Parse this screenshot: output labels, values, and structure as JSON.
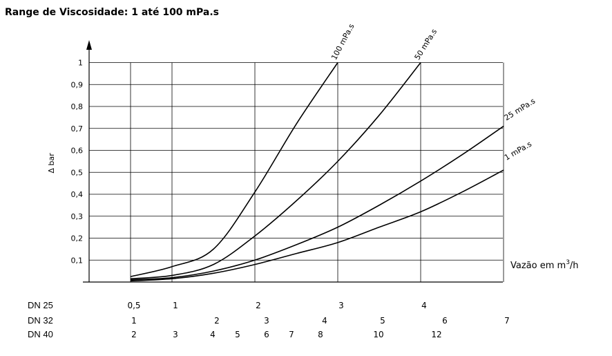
{
  "chart_data": {
    "type": "line",
    "title": "Range de Viscosidade: 1 até 100 mPa.s",
    "ylabel": "Δ bar",
    "xlabel_main": "Vazão em m",
    "xlabel_sup": "3",
    "xlabel_tail": "/h",
    "xlim": [
      0,
      7
    ],
    "ylim": [
      0,
      1
    ],
    "yticks": [
      "0,1",
      "0,2",
      "0,3",
      "0,4",
      "0,5",
      "0,6",
      "0,7",
      "0,8",
      "0,9",
      "1"
    ],
    "yticks_values": [
      0.1,
      0.2,
      0.3,
      0.4,
      0.5,
      0.6,
      0.7,
      0.8,
      0.9,
      1
    ],
    "grid": true,
    "dn_scales": [
      {
        "name": "DN 25",
        "ticks": [
          {
            "label": "0,5",
            "x": 0.5
          },
          {
            "label": "1",
            "x": 1
          },
          {
            "label": "2",
            "x": 2
          },
          {
            "label": "3",
            "x": 3
          },
          {
            "label": "4",
            "x": 4
          }
        ]
      },
      {
        "name": "DN 32",
        "ticks": [
          {
            "label": "1",
            "x": 0.5
          },
          {
            "label": "2",
            "x": 1.5
          },
          {
            "label": "3",
            "x": 2.1
          },
          {
            "label": "4",
            "x": 2.8
          },
          {
            "label": "5",
            "x": 3.5
          },
          {
            "label": "6",
            "x": 4.25
          },
          {
            "label": "7",
            "x": 5
          }
        ]
      },
      {
        "name": "DN 40",
        "ticks": [
          {
            "label": "2",
            "x": 0.5
          },
          {
            "label": "3",
            "x": 1
          },
          {
            "label": "4",
            "x": 1.45
          },
          {
            "label": "5",
            "x": 1.75
          },
          {
            "label": "6",
            "x": 2.1
          },
          {
            "label": "7",
            "x": 2.4
          },
          {
            "label": "8",
            "x": 2.75
          },
          {
            "label": "10",
            "x": 3.45
          },
          {
            "label": "12",
            "x": 4.15
          }
        ]
      }
    ],
    "series": [
      {
        "name": "100 mPa.s",
        "x": [
          0.5,
          1,
          1.5,
          2,
          2.5,
          3
        ],
        "y": [
          0.025,
          0.07,
          0.15,
          0.41,
          0.72,
          1.0
        ]
      },
      {
        "name": "50 mPa.s",
        "x": [
          0.5,
          1,
          1.5,
          2,
          2.5,
          3,
          3.5,
          4
        ],
        "y": [
          0.015,
          0.03,
          0.08,
          0.21,
          0.37,
          0.55,
          0.76,
          1.0
        ]
      },
      {
        "name": "25 mPa.s",
        "x": [
          0.5,
          1,
          1.5,
          2,
          2.5,
          3,
          3.5,
          4,
          4.5,
          5
        ],
        "y": [
          0.01,
          0.02,
          0.05,
          0.1,
          0.17,
          0.25,
          0.35,
          0.46,
          0.58,
          0.71
        ]
      },
      {
        "name": "1 mPa.s",
        "x": [
          0.5,
          1,
          1.5,
          2,
          2.5,
          3,
          3.5,
          4,
          4.5,
          5
        ],
        "y": [
          0.005,
          0.015,
          0.04,
          0.08,
          0.13,
          0.18,
          0.25,
          0.32,
          0.41,
          0.51
        ]
      }
    ]
  }
}
